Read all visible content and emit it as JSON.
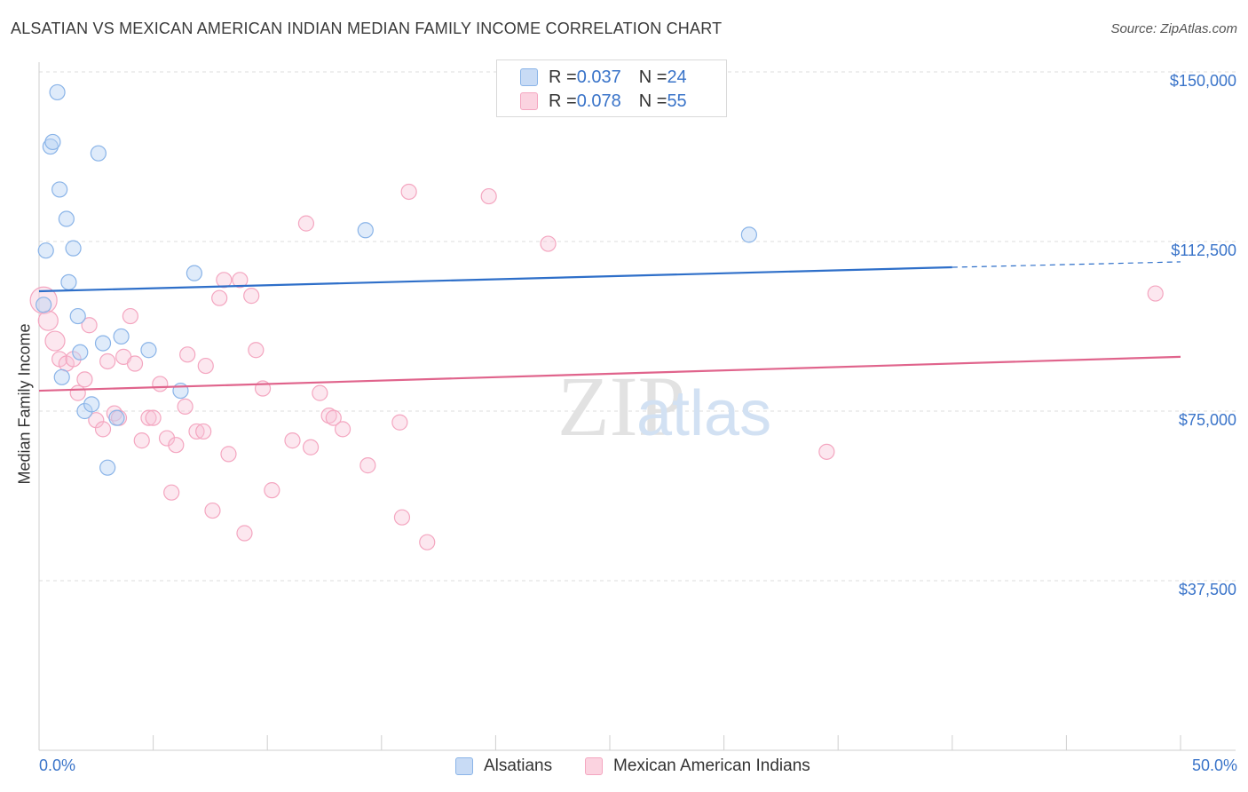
{
  "title": "ALSATIAN VS MEXICAN AMERICAN INDIAN MEDIAN FAMILY INCOME CORRELATION CHART",
  "source": "Source: ZipAtlas.com",
  "watermark": {
    "zip": "ZIP",
    "atlas": "atlas"
  },
  "legend_top": [
    {
      "r_label": "R = ",
      "r_value": "0.037",
      "n_label": "N = ",
      "n_value": "24"
    },
    {
      "r_label": "R = ",
      "r_value": "0.078",
      "n_label": "N = ",
      "n_value": "55"
    }
  ],
  "chart_data": {
    "type": "scatter",
    "title": "ALSATIAN VS MEXICAN AMERICAN INDIAN MEDIAN FAMILY INCOME CORRELATION CHART",
    "xlabel": "",
    "ylabel": "Median Family Income",
    "xlim": [
      0,
      50
    ],
    "ylim": [
      0,
      155000
    ],
    "x_tick_labels": [
      "0.0%",
      "50.0%"
    ],
    "y_ticks": [
      37500,
      75000,
      112500,
      150000
    ],
    "y_tick_labels": [
      "$37,500",
      "$75,000",
      "$112,500",
      "$150,000"
    ],
    "grid": true,
    "legend_position": "bottom-center",
    "series": [
      {
        "name": "Alsatians",
        "color": "#8ab4e8",
        "line_color": "#2e6fc9",
        "trend": {
          "x": [
            0,
            40,
            50
          ],
          "y": [
            101500,
            106800,
            108000
          ],
          "dashed_from": 40
        },
        "points": [
          {
            "x": 0.2,
            "y": 98500
          },
          {
            "x": 0.3,
            "y": 110500
          },
          {
            "x": 0.5,
            "y": 133500
          },
          {
            "x": 0.6,
            "y": 134500
          },
          {
            "x": 0.8,
            "y": 145500
          },
          {
            "x": 0.9,
            "y": 124000
          },
          {
            "x": 1.0,
            "y": 82500
          },
          {
            "x": 1.2,
            "y": 117500
          },
          {
            "x": 1.3,
            "y": 103500
          },
          {
            "x": 1.5,
            "y": 111000
          },
          {
            "x": 1.7,
            "y": 96000
          },
          {
            "x": 1.8,
            "y": 88000
          },
          {
            "x": 2.0,
            "y": 75000
          },
          {
            "x": 2.3,
            "y": 76500
          },
          {
            "x": 2.6,
            "y": 132000
          },
          {
            "x": 2.8,
            "y": 90000
          },
          {
            "x": 3.0,
            "y": 62500
          },
          {
            "x": 3.4,
            "y": 73500
          },
          {
            "x": 3.6,
            "y": 91500
          },
          {
            "x": 4.8,
            "y": 88500
          },
          {
            "x": 6.2,
            "y": 79500
          },
          {
            "x": 6.8,
            "y": 105500
          },
          {
            "x": 14.3,
            "y": 115000
          },
          {
            "x": 31.1,
            "y": 114000
          }
        ]
      },
      {
        "name": "Mexican American Indians",
        "color": "#f4a6c0",
        "line_color": "#e0648c",
        "trend": {
          "x": [
            0,
            50
          ],
          "y": [
            79500,
            87000
          ]
        },
        "points": [
          {
            "x": 0.2,
            "y": 99500
          },
          {
            "x": 0.4,
            "y": 95000
          },
          {
            "x": 0.7,
            "y": 90500
          },
          {
            "x": 0.9,
            "y": 86500
          },
          {
            "x": 1.2,
            "y": 85500
          },
          {
            "x": 1.5,
            "y": 86500
          },
          {
            "x": 1.7,
            "y": 79000
          },
          {
            "x": 2.0,
            "y": 82000
          },
          {
            "x": 2.2,
            "y": 94000
          },
          {
            "x": 2.5,
            "y": 73000
          },
          {
            "x": 2.8,
            "y": 71000
          },
          {
            "x": 3.0,
            "y": 86000
          },
          {
            "x": 3.3,
            "y": 74500
          },
          {
            "x": 3.5,
            "y": 73500
          },
          {
            "x": 3.7,
            "y": 87000
          },
          {
            "x": 4.0,
            "y": 96000
          },
          {
            "x": 4.2,
            "y": 85500
          },
          {
            "x": 4.5,
            "y": 68500
          },
          {
            "x": 4.8,
            "y": 73500
          },
          {
            "x": 5.0,
            "y": 73500
          },
          {
            "x": 5.3,
            "y": 81000
          },
          {
            "x": 5.6,
            "y": 69000
          },
          {
            "x": 5.8,
            "y": 57000
          },
          {
            "x": 6.0,
            "y": 67500
          },
          {
            "x": 6.4,
            "y": 76000
          },
          {
            "x": 6.5,
            "y": 87500
          },
          {
            "x": 6.9,
            "y": 70500
          },
          {
            "x": 7.2,
            "y": 70500
          },
          {
            "x": 7.3,
            "y": 85000
          },
          {
            "x": 7.6,
            "y": 53000
          },
          {
            "x": 7.9,
            "y": 100000
          },
          {
            "x": 8.1,
            "y": 104000
          },
          {
            "x": 8.3,
            "y": 65500
          },
          {
            "x": 8.8,
            "y": 104000
          },
          {
            "x": 9.0,
            "y": 48000
          },
          {
            "x": 9.3,
            "y": 100500
          },
          {
            "x": 9.5,
            "y": 88500
          },
          {
            "x": 9.8,
            "y": 80000
          },
          {
            "x": 10.2,
            "y": 57500
          },
          {
            "x": 11.1,
            "y": 68500
          },
          {
            "x": 11.7,
            "y": 116500
          },
          {
            "x": 11.9,
            "y": 67000
          },
          {
            "x": 12.3,
            "y": 79000
          },
          {
            "x": 12.7,
            "y": 74000
          },
          {
            "x": 12.9,
            "y": 73500
          },
          {
            "x": 13.3,
            "y": 71000
          },
          {
            "x": 14.4,
            "y": 63000
          },
          {
            "x": 15.8,
            "y": 72500
          },
          {
            "x": 15.9,
            "y": 51500
          },
          {
            "x": 16.2,
            "y": 123500
          },
          {
            "x": 17.0,
            "y": 46000
          },
          {
            "x": 19.7,
            "y": 122500
          },
          {
            "x": 22.3,
            "y": 112000
          },
          {
            "x": 34.5,
            "y": 66000
          },
          {
            "x": 48.9,
            "y": 101000
          }
        ]
      }
    ]
  }
}
